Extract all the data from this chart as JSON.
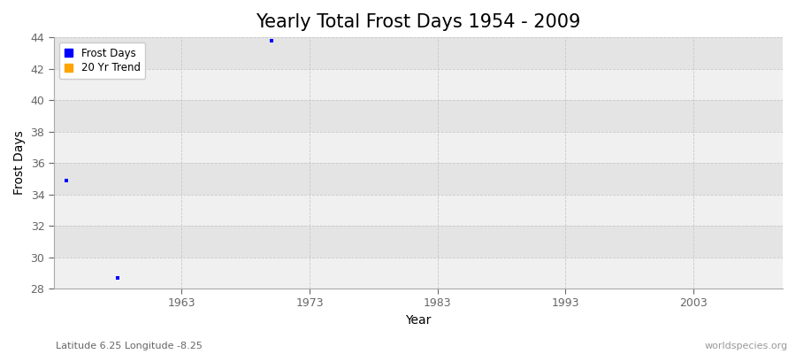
{
  "title": "Yearly Total Frost Days 1954 - 2009",
  "xlabel": "Year",
  "ylabel": "Frost Days",
  "xlim": [
    1953,
    2010
  ],
  "ylim": [
    28,
    44
  ],
  "yticks": [
    28,
    30,
    32,
    34,
    36,
    38,
    40,
    42,
    44
  ],
  "xticks": [
    1963,
    1973,
    1983,
    1993,
    2003
  ],
  "background_color": "#ffffff",
  "plot_bg_color": "#ebebeb",
  "band_color_light": "#f0f0f0",
  "band_color_dark": "#e4e4e4",
  "grid_color": "#c8c8c8",
  "data_points": [
    {
      "year": 1954,
      "value": 34.9
    },
    {
      "year": 1958,
      "value": 28.7
    },
    {
      "year": 1970,
      "value": 43.8
    }
  ],
  "point_color": "#0000ff",
  "point_size": 3,
  "legend_entries": [
    {
      "label": "Frost Days",
      "color": "#0000ff"
    },
    {
      "label": "20 Yr Trend",
      "color": "#ffa500"
    }
  ],
  "footnote_left": "Latitude 6.25 Longitude -8.25",
  "footnote_right": "worldspecies.org",
  "title_fontsize": 15,
  "axis_label_fontsize": 10,
  "tick_fontsize": 9,
  "footnote_fontsize": 8
}
